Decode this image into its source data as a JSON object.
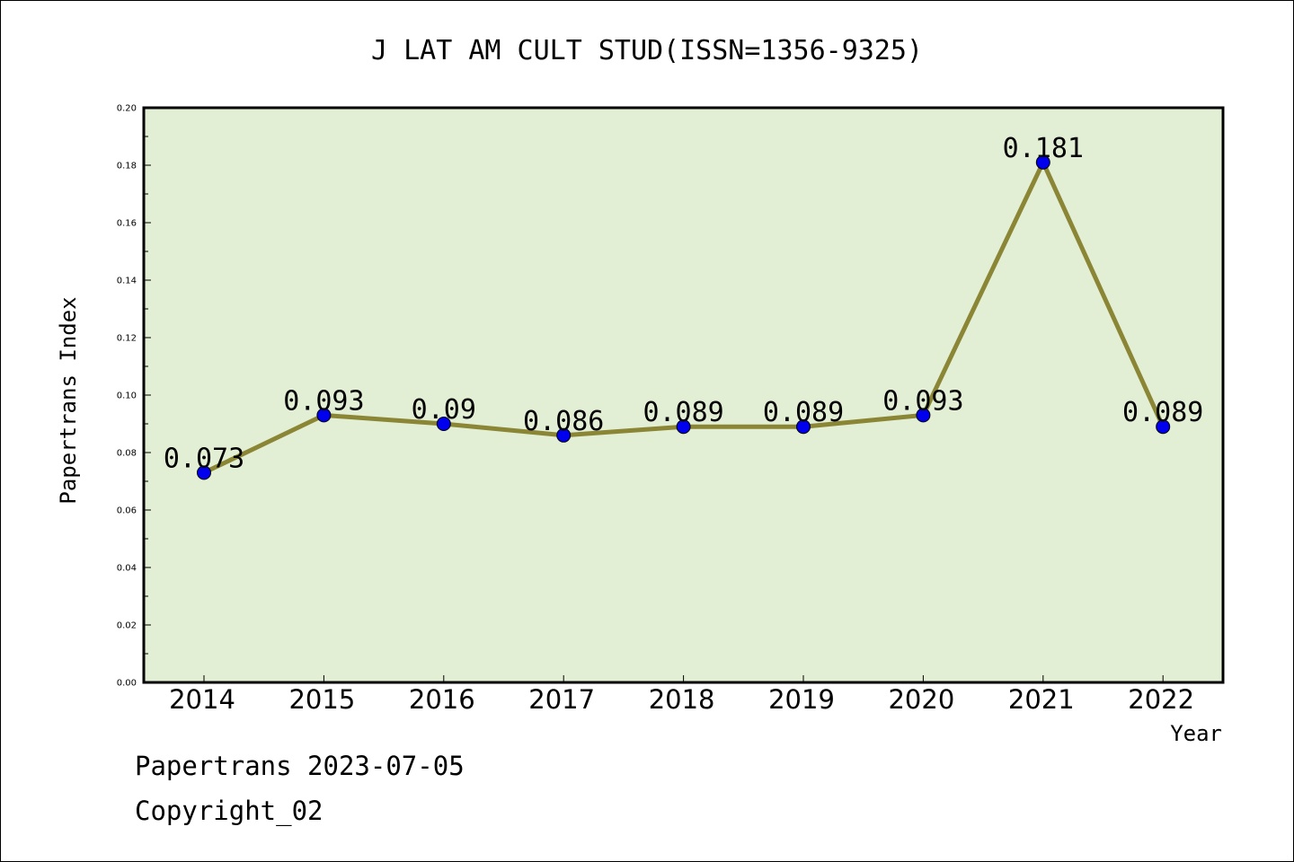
{
  "chart_data": {
    "type": "line",
    "title": "J LAT AM CULT STUD(ISSN=1356-9325)",
    "xlabel": "Year",
    "ylabel": "Papertrans Index",
    "x": [
      "2014",
      "2015",
      "2016",
      "2017",
      "2018",
      "2019",
      "2020",
      "2021",
      "2022"
    ],
    "y": [
      0.073,
      0.093,
      0.09,
      0.086,
      0.089,
      0.089,
      0.093,
      0.181,
      0.089
    ],
    "point_labels": [
      "0.073",
      "0.093",
      "0.09",
      "0.086",
      "0.089",
      "0.089",
      "0.093",
      "0.181",
      "0.089"
    ],
    "ylim": [
      0,
      0.2
    ],
    "yticks": [
      "0.00",
      "0.02",
      "0.04",
      "0.06",
      "0.08",
      "0.10",
      "0.12",
      "0.14",
      "0.16",
      "0.18",
      "0.20"
    ],
    "grid": false,
    "colors": {
      "plot_background": "#e2efd4",
      "line": "#8b8636",
      "marker": "#0000ee"
    }
  },
  "footer": {
    "line1": "Papertrans 2023-07-05",
    "line2": "Copyright_02"
  }
}
